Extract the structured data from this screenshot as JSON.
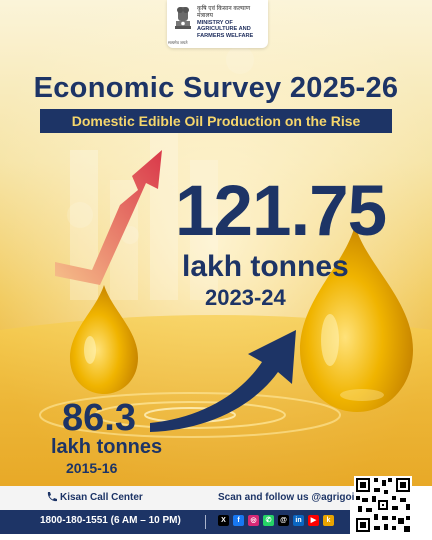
{
  "header": {
    "ministry_hindi": "कृषि एवं किसान कल्याण मंत्रालय",
    "ministry_english": "MINISTRY OF AGRICULTURE AND FARMERS WELFARE",
    "emblem_caption": "सत्यमेव जयते"
  },
  "title": "Economic Survey 2025-26",
  "subtitle": "Domestic Edible Oil Production on the Rise",
  "current": {
    "value": "121.75",
    "unit": "lakh tonnes",
    "year": "2023-24"
  },
  "previous": {
    "value": "86.3",
    "unit": "lakh tonnes",
    "year": "2015-16"
  },
  "footer": {
    "kisan_label": "Kisan Call Center",
    "helpline": "1800-180-1551 (6 AM – 10 PM)",
    "scan_text": "Scan and follow us @agrigoi",
    "social_icons": [
      "x-icon",
      "facebook-icon",
      "instagram-icon",
      "whatsapp-icon",
      "threads-icon",
      "linkedin-icon",
      "youtube-icon",
      "koo-icon"
    ]
  },
  "colors": {
    "navy": "#1d3466",
    "gold": "#f5d66c",
    "oil": "#f0b400",
    "arrow_red": "#d9384a"
  }
}
